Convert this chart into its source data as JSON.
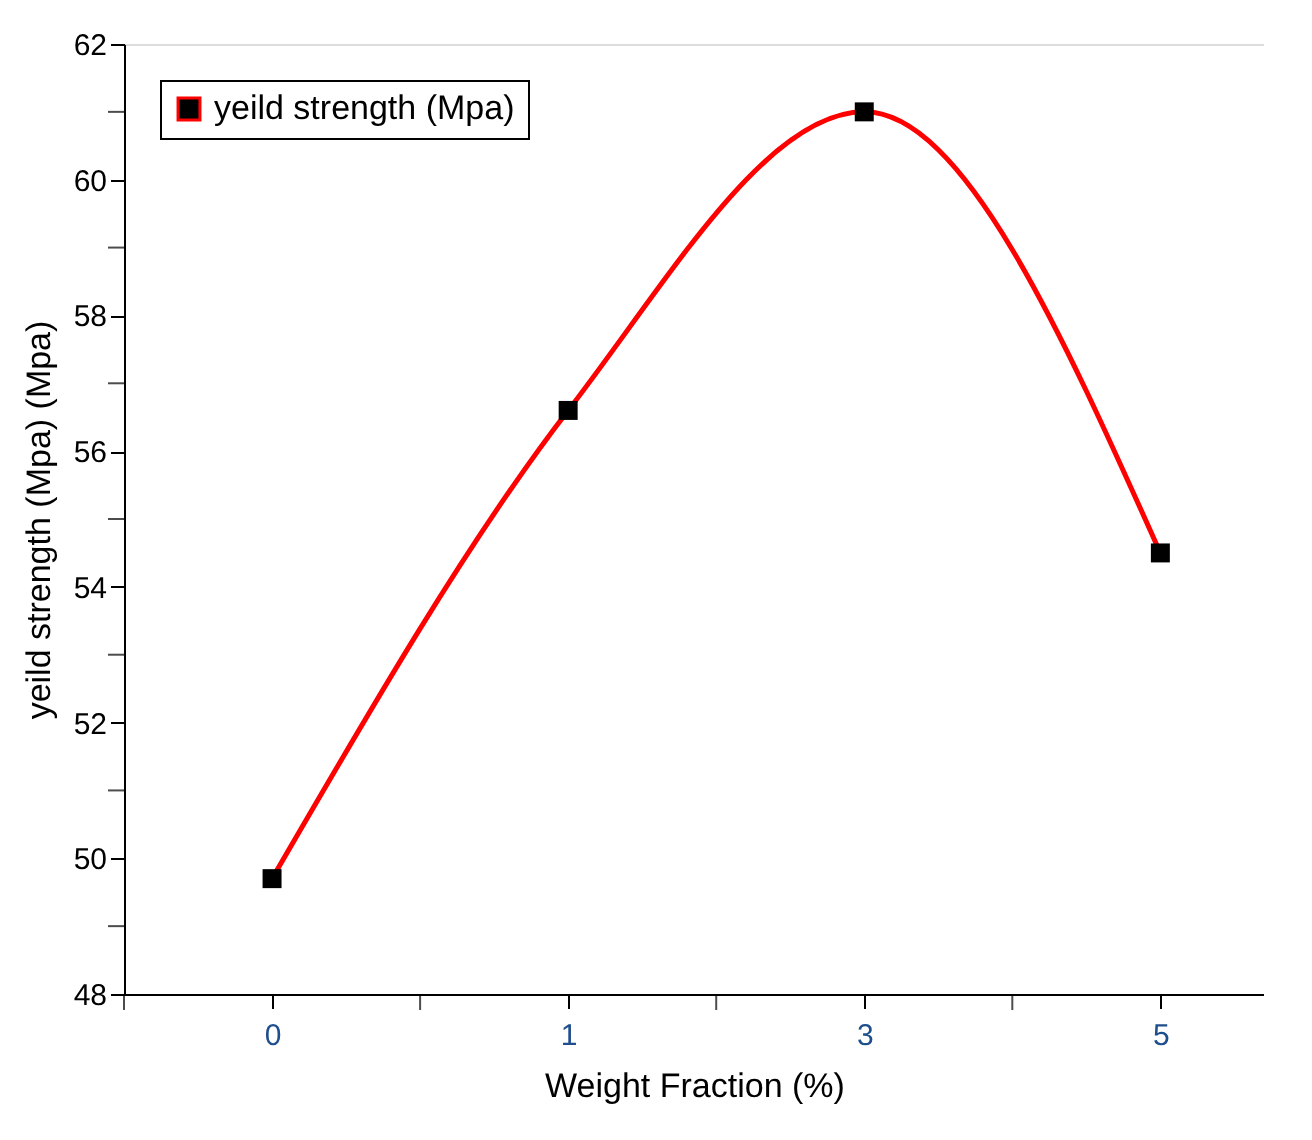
{
  "chart_data": {
    "type": "line",
    "xlabel": "Weight Fraction (%)",
    "ylabel": "yeild strength (Mpa) (Mpa)",
    "categories": [
      "0",
      "1",
      "3",
      "5"
    ],
    "series": [
      {
        "name": "yeild strength (Mpa)",
        "color": "#ff0000",
        "values": [
          49.7,
          56.6,
          61.0,
          54.5
        ]
      }
    ],
    "ylim": [
      48,
      62
    ],
    "yticks": [
      48,
      50,
      52,
      54,
      56,
      58,
      60,
      62
    ],
    "grid": false,
    "legend": "top left",
    "marker": "square",
    "line_style": "solid"
  }
}
